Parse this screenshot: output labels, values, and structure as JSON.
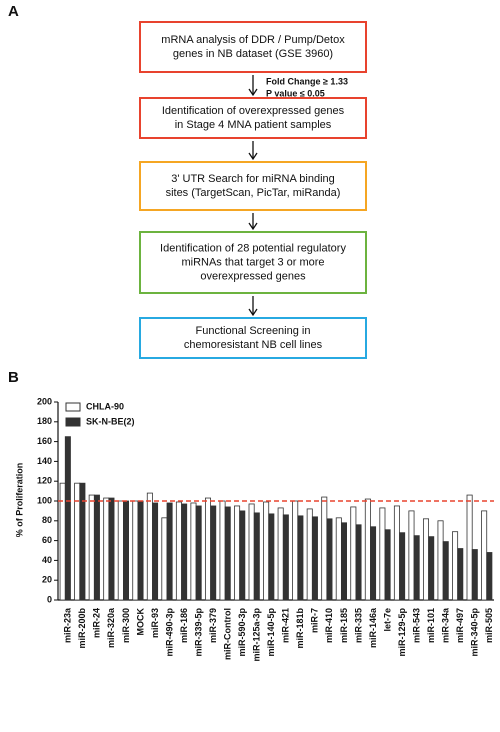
{
  "panel_a": {
    "label": "A",
    "nodes": [
      {
        "color": "#e8432e",
        "lines": [
          "mRNA analysis of DDR / Pump/Detox",
          "genes in NB dataset (GSE 3960)"
        ]
      },
      {
        "color": "#e8432e",
        "lines": [
          "Identification of overexpressed genes",
          "in Stage 4 MNA patient samples"
        ]
      },
      {
        "color": "#f5a623",
        "lines": [
          "3' UTR Search for miRNA binding",
          "sites (TargetScan, PicTar, miRanda)"
        ]
      },
      {
        "color": "#6cb33f",
        "lines": [
          "Identification of  28 potential regulatory",
          "miRNAs that target 3 or more",
          "overexpressed genes"
        ]
      },
      {
        "color": "#27a9e1",
        "lines": [
          "Functional Screening in",
          "chemoresistant NB cell lines"
        ]
      }
    ],
    "annotation": [
      "Fold Change ≥ 1.33",
      "P value ≤ 0.05"
    ]
  },
  "panel_b_label": "B",
  "chart_data": {
    "type": "bar",
    "y_label": "% of Proliferation",
    "categories": [
      "miR-23a",
      "miR-200b",
      "miR-24",
      "miR-320a",
      "miR-300",
      "MOCK",
      "miR-93",
      "miR-490-3p",
      "miR-186",
      "miR-339-5p",
      "miR-379",
      "miR-Control",
      "miR-590-3p",
      "miR-125a-3p",
      "miR-140-5p",
      "miR-421",
      "miR-181b",
      "miR-7",
      "miR-410",
      "miR-185",
      "miR-335",
      "miR-146a",
      "let-7e",
      "miR-129-5p",
      "miR-543",
      "miR-101",
      "miR-34a",
      "miR-497",
      "miR-340-5p",
      "miR-505"
    ],
    "series": [
      {
        "name": "CHLA-90",
        "color": "#ffffff",
        "values": [
          118,
          118,
          106,
          103,
          100,
          100,
          108,
          83,
          99,
          98,
          103,
          100,
          95,
          97,
          99,
          93,
          100,
          92,
          104,
          83,
          94,
          102,
          93,
          95,
          90,
          82,
          80,
          69,
          106,
          90
        ]
      },
      {
        "name": "SK-N-BE(2)",
        "color": "#333333",
        "values": [
          165,
          118,
          106,
          103,
          100,
          100,
          98,
          98,
          97,
          95,
          95,
          94,
          90,
          88,
          87,
          86,
          85,
          84,
          82,
          78,
          76,
          74,
          71,
          68,
          65,
          64,
          59,
          52,
          51,
          48
        ]
      }
    ],
    "ylim": [
      0,
      200
    ],
    "yticks": [
      0,
      20,
      40,
      60,
      80,
      100,
      120,
      140,
      160,
      180,
      200
    ],
    "ref_line": 100,
    "ref_color": "#e8432e",
    "legend": "top-left"
  }
}
